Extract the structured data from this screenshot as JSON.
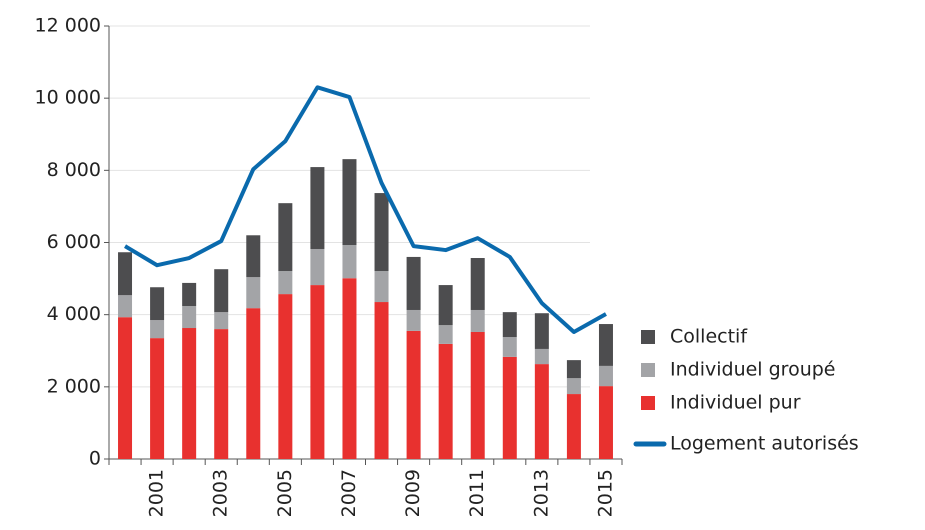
{
  "chart_data": {
    "type": "bar",
    "stacked": true,
    "categories": [
      null,
      "2001",
      null,
      "2003",
      null,
      "2005",
      null,
      "2007",
      null,
      "2009",
      null,
      "2011",
      null,
      "2013",
      null,
      "2015"
    ],
    "series": [
      {
        "name": "Individuel pur",
        "color": "#e8312f",
        "values": [
          3930,
          3350,
          3630,
          3600,
          4180,
          4570,
          4820,
          5010,
          4350,
          3550,
          3190,
          3520,
          2830,
          2630,
          1800,
          2020
        ]
      },
      {
        "name": "Individuel groupé",
        "color": "#a3a4a7",
        "values": [
          610,
          500,
          610,
          470,
          860,
          640,
          1000,
          920,
          860,
          580,
          520,
          610,
          550,
          420,
          440,
          560
        ]
      },
      {
        "name": "Collectif",
        "color": "#4d4d4f",
        "values": [
          1190,
          910,
          640,
          1190,
          1160,
          1880,
          2270,
          2380,
          2160,
          1470,
          1110,
          1440,
          690,
          990,
          500,
          1160
        ]
      },
      {
        "name": "Logement autorisés",
        "color": "#0a6aad",
        "type": "line",
        "values": [
          5900,
          5370,
          5570,
          6040,
          8030,
          8810,
          10300,
          10030,
          7650,
          5900,
          5790,
          6120,
          5600,
          4320,
          3520,
          4020
        ]
      }
    ],
    "ylim": [
      0,
      12000
    ],
    "yticks": [
      0,
      {
        "value": 2000,
        "label": "2 000"
      },
      {
        "value": 4000,
        "label": "4 000"
      },
      {
        "value": 6000,
        "label": "6 000"
      },
      {
        "value": 8000,
        "label": "8 000"
      },
      {
        "value": 10000,
        "label": "10 000"
      },
      {
        "value": 12000,
        "label": "12 000"
      }
    ],
    "grid": true,
    "legend": "right"
  }
}
